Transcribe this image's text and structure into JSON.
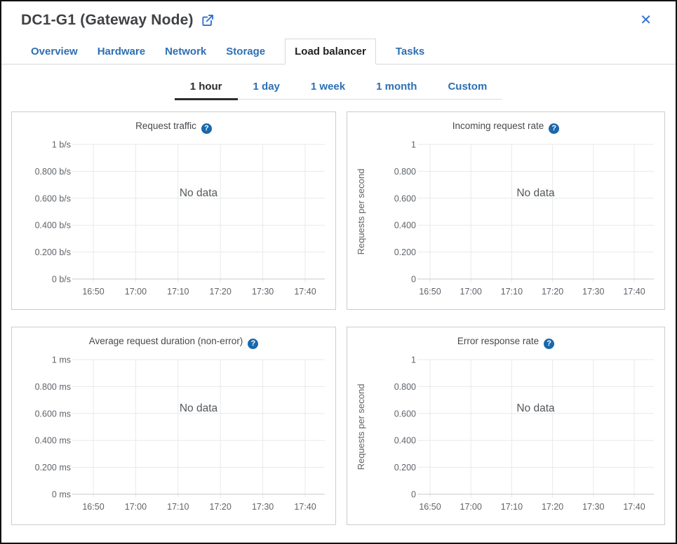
{
  "header": {
    "title": "DC1-G1 (Gateway Node)"
  },
  "icons": {
    "external_link": "external-link",
    "close_glyph": "✕",
    "help_glyph": "?"
  },
  "colors": {
    "accent": "#2d6fb4",
    "icon_blue": "#2f6fd2",
    "help_fill": "#1a68ab",
    "grid_line": "#e7e9eb",
    "axis_line": "#c6cacd",
    "tick_text": "#5f6368",
    "no_data_text": "#54585c"
  },
  "tabs": {
    "items": [
      {
        "label": "Overview",
        "active": false
      },
      {
        "label": "Hardware",
        "active": false
      },
      {
        "label": "Network",
        "active": false
      },
      {
        "label": "Storage",
        "active": false
      },
      {
        "label": "Load balancer",
        "active": true
      },
      {
        "label": "Tasks",
        "active": false
      }
    ]
  },
  "time_range": {
    "items": [
      {
        "label": "1 hour",
        "active": true
      },
      {
        "label": "1 day",
        "active": false
      },
      {
        "label": "1 week",
        "active": false
      },
      {
        "label": "1 month",
        "active": false
      },
      {
        "label": "Custom",
        "active": false
      }
    ]
  },
  "chart_data": [
    {
      "type": "line",
      "title": "Request traffic",
      "xlabel": "",
      "ylabel": "",
      "ylim": [
        0,
        1
      ],
      "x_ticks": [
        "16:50",
        "17:00",
        "17:10",
        "17:20",
        "17:30",
        "17:40"
      ],
      "y_ticks": [
        "1 b/s",
        "0.800 b/s",
        "0.600 b/s",
        "0.400 b/s",
        "0.200 b/s",
        "0 b/s"
      ],
      "grid": true,
      "legend": "none",
      "series": [],
      "no_data_label": "No data"
    },
    {
      "type": "line",
      "title": "Incoming request rate",
      "xlabel": "",
      "ylabel": "Requests per second",
      "ylim": [
        0,
        1
      ],
      "x_ticks": [
        "16:50",
        "17:00",
        "17:10",
        "17:20",
        "17:30",
        "17:40"
      ],
      "y_ticks": [
        "1",
        "0.800",
        "0.600",
        "0.400",
        "0.200",
        "0"
      ],
      "grid": true,
      "legend": "none",
      "series": [],
      "no_data_label": "No data"
    },
    {
      "type": "line",
      "title": "Average request duration (non-error)",
      "xlabel": "",
      "ylabel": "",
      "ylim": [
        0,
        1
      ],
      "x_ticks": [
        "16:50",
        "17:00",
        "17:10",
        "17:20",
        "17:30",
        "17:40"
      ],
      "y_ticks": [
        "1 ms",
        "0.800 ms",
        "0.600 ms",
        "0.400 ms",
        "0.200 ms",
        "0 ms"
      ],
      "grid": true,
      "legend": "none",
      "series": [],
      "no_data_label": "No data"
    },
    {
      "type": "line",
      "title": "Error response rate",
      "xlabel": "",
      "ylabel": "Requests per second",
      "ylim": [
        0,
        1
      ],
      "x_ticks": [
        "16:50",
        "17:00",
        "17:10",
        "17:20",
        "17:30",
        "17:40"
      ],
      "y_ticks": [
        "1",
        "0.800",
        "0.600",
        "0.400",
        "0.200",
        "0"
      ],
      "grid": true,
      "legend": "none",
      "series": [],
      "no_data_label": "No data"
    }
  ]
}
